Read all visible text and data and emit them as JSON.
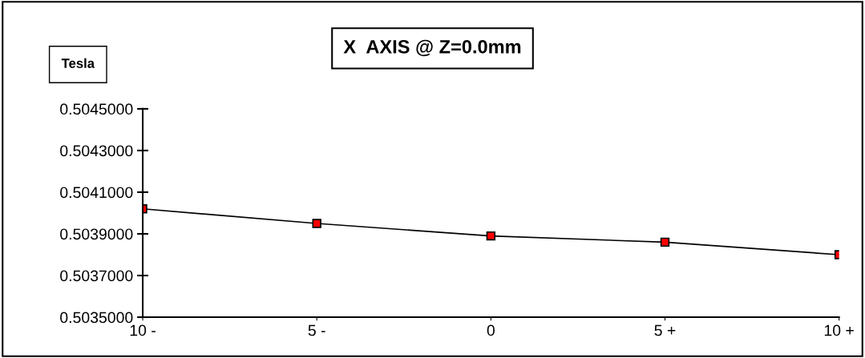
{
  "chart_data": {
    "type": "line",
    "title": "X  AXIS @ Z=0.0mm",
    "ylabel": "Tesla",
    "categories": [
      "10 -",
      "5 -",
      "0",
      "5 +",
      "10 +"
    ],
    "series": [
      {
        "color": "#000000",
        "values": [
          0.50402,
          0.50395,
          0.50389,
          0.50386,
          0.5038
        ]
      }
    ],
    "ylim": [
      0.5035,
      0.5045
    ],
    "yticks": [
      {
        "value": 0.5035,
        "label": "0.5035000"
      },
      {
        "value": 0.5037,
        "label": "0.5037000"
      },
      {
        "value": 0.5039,
        "label": "0.5039000"
      },
      {
        "value": 0.5041,
        "label": "0.5041000"
      },
      {
        "value": 0.5043,
        "label": "0.5043000"
      },
      {
        "value": 0.5045,
        "label": "0.5045000"
      }
    ],
    "marker": "square"
  }
}
